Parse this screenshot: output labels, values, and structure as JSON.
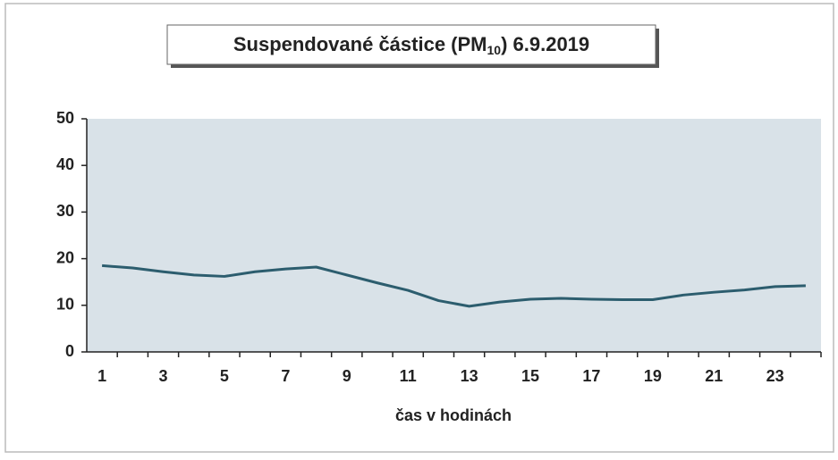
{
  "chart_data": {
    "type": "line",
    "title": "Suspendované částice (PM",
    "title_subscript": "10",
    "title_suffix": ") 6.9.2019",
    "x_label": "čas v hodinách",
    "categories": [
      1,
      null,
      3,
      null,
      5,
      null,
      7,
      null,
      9,
      null,
      11,
      null,
      13,
      null,
      15,
      null,
      17,
      null,
      19,
      null,
      21,
      null,
      23,
      null
    ],
    "series": [
      {
        "color": "#2c5d6e",
        "values": [
          18.5,
          18,
          17.2,
          16.5,
          16.2,
          17.2,
          17.8,
          18.2,
          16.5,
          14.8,
          13.2,
          11,
          9.8,
          10.7,
          11.3,
          11.5,
          11.3,
          11.2,
          11.2,
          12.2,
          12.8,
          13.3,
          14,
          14.2
        ]
      }
    ],
    "ylim": [
      0,
      50
    ],
    "yticks": [
      0,
      10,
      20,
      30,
      40,
      50
    ],
    "grid": false
  }
}
